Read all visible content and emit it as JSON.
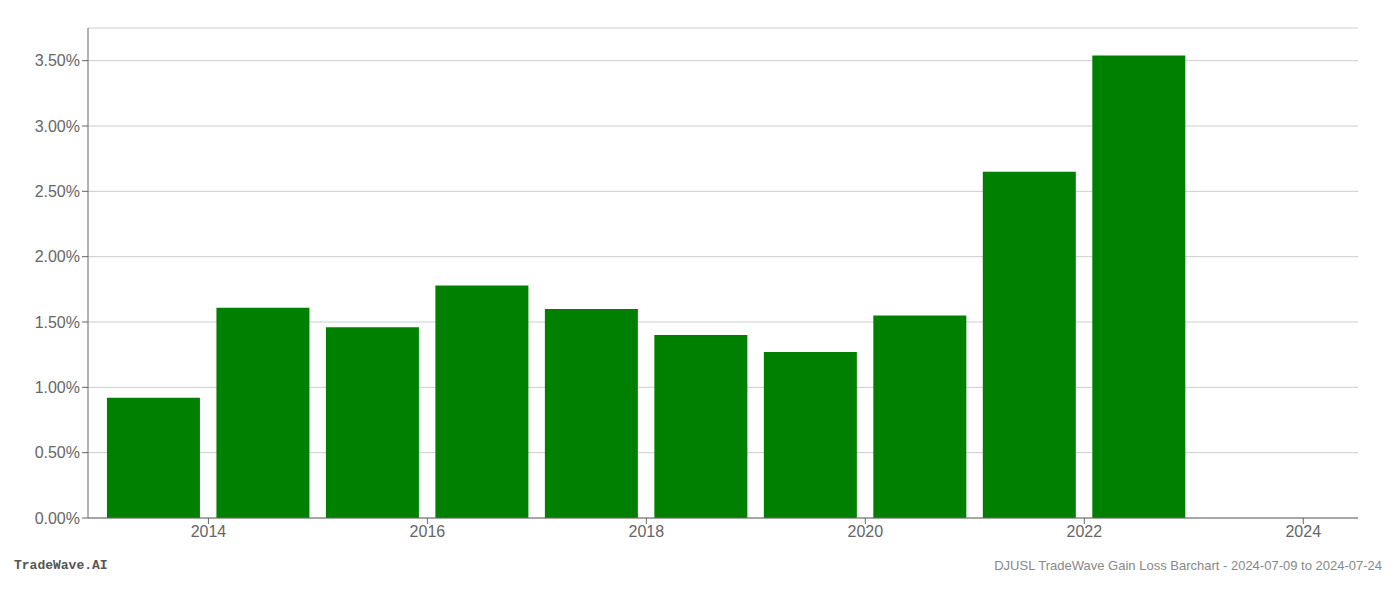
{
  "chart_data": {
    "type": "bar",
    "x": [
      2014,
      2015,
      2016,
      2017,
      2018,
      2019,
      2020,
      2021,
      2022,
      2023
    ],
    "values": [
      0.0092,
      0.0161,
      0.0146,
      0.0178,
      0.016,
      0.014,
      0.0127,
      0.0155,
      0.0265,
      0.0354
    ],
    "color": "#008000",
    "xlim": [
      2013.4,
      2025.0
    ],
    "xticks": [
      {
        "value": 2014.5,
        "label": "2014"
      },
      {
        "value": 2016.5,
        "label": "2016"
      },
      {
        "value": 2018.5,
        "label": "2018"
      },
      {
        "value": 2020.5,
        "label": "2020"
      },
      {
        "value": 2022.5,
        "label": "2022"
      },
      {
        "value": 2024.5,
        "label": "2024"
      }
    ],
    "ylim": [
      0,
      0.0375
    ],
    "yticks": [
      {
        "value": 0.0,
        "label": "0.00%"
      },
      {
        "value": 0.005,
        "label": "0.50%"
      },
      {
        "value": 0.01,
        "label": "1.00%"
      },
      {
        "value": 0.015,
        "label": "1.50%"
      },
      {
        "value": 0.02,
        "label": "2.00%"
      },
      {
        "value": 0.025,
        "label": "2.50%"
      },
      {
        "value": 0.03,
        "label": "3.00%"
      },
      {
        "value": 0.035,
        "label": "3.50%"
      }
    ],
    "grid": true,
    "annotations": [
      "TradeWave.AI",
      "DJUSL TradeWave Gain Loss Barchart - 2024-07-09 to 2024-07-24"
    ]
  }
}
